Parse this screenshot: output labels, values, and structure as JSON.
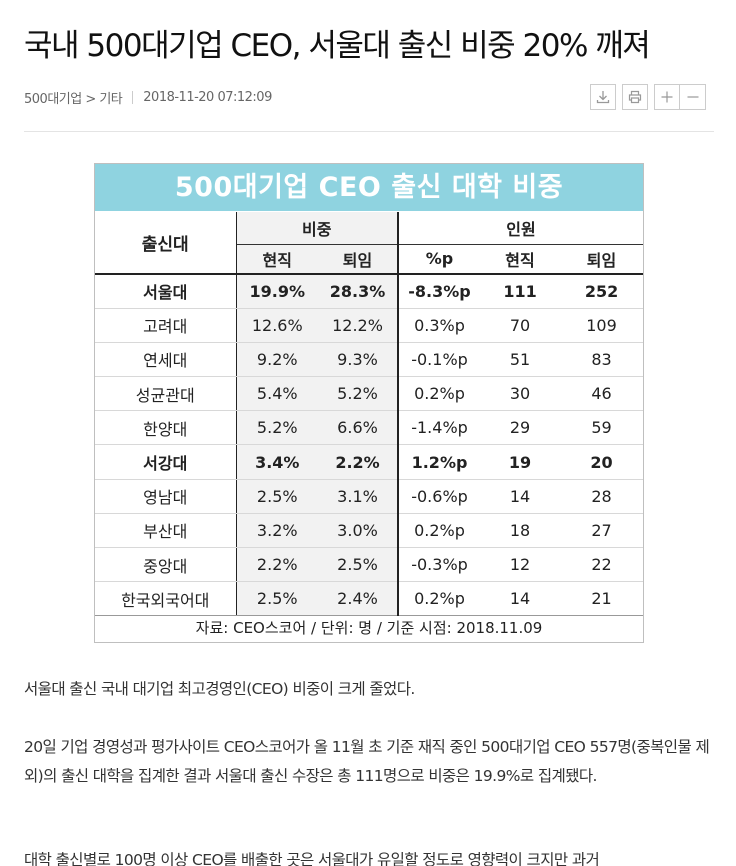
{
  "article": {
    "headline": "국내 500대기업 CEO, 서울대 출신 비중 20% 깨져",
    "category": "500대기업 > 기타",
    "datetime": "2018-11-20 07:12:09",
    "tools": {
      "download": "download-icon",
      "print": "print-icon",
      "font_up": "plus-icon",
      "font_down": "minus-icon"
    },
    "paragraphs": [
      "서울대 출신 국내 대기업 최고경영인(CEO) 비중이 크게 줄었다.",
      "20일 기업 경영성과 평가사이트 CEO스코어가 올 11월 초 기준 재직 중인 500대기업 CEO 557명(중복인물 제외)의 출신 대학을 집계한 결과 서울대 출신 수장은 총 111명으로 비중은 19.9%로 집계됐다.",
      "대학 출신별로 100명 이상 CEO를 배출한 곳은 서울대가 유일할 정도로 영향력이 크지만 과거"
    ]
  },
  "chart_data": {
    "type": "table",
    "title": "500대기업 CEO 출신 대학 비중",
    "header": {
      "university": "출신대",
      "share_group": "비중",
      "people_group": "인원",
      "share_current": "현직",
      "share_retired": "퇴임",
      "pp": "%p",
      "people_current": "현직",
      "people_retired": "퇴임"
    },
    "rows": [
      {
        "name": "서울대",
        "share_current": "19.9%",
        "share_retired": "28.3%",
        "pp": "-8.3%p",
        "current": "111",
        "retired": "252",
        "bold": true
      },
      {
        "name": "고려대",
        "share_current": "12.6%",
        "share_retired": "12.2%",
        "pp": "0.3%p",
        "current": "70",
        "retired": "109",
        "bold": false
      },
      {
        "name": "연세대",
        "share_current": "9.2%",
        "share_retired": "9.3%",
        "pp": "-0.1%p",
        "current": "51",
        "retired": "83",
        "bold": false
      },
      {
        "name": "성균관대",
        "share_current": "5.4%",
        "share_retired": "5.2%",
        "pp": "0.2%p",
        "current": "30",
        "retired": "46",
        "bold": false
      },
      {
        "name": "한양대",
        "share_current": "5.2%",
        "share_retired": "6.6%",
        "pp": "-1.4%p",
        "current": "29",
        "retired": "59",
        "bold": false
      },
      {
        "name": "서강대",
        "share_current": "3.4%",
        "share_retired": "2.2%",
        "pp": "1.2%p",
        "current": "19",
        "retired": "20",
        "bold": true
      },
      {
        "name": "영남대",
        "share_current": "2.5%",
        "share_retired": "3.1%",
        "pp": "-0.6%p",
        "current": "14",
        "retired": "28",
        "bold": false
      },
      {
        "name": "부산대",
        "share_current": "3.2%",
        "share_retired": "3.0%",
        "pp": "0.2%p",
        "current": "18",
        "retired": "27",
        "bold": false
      },
      {
        "name": "중앙대",
        "share_current": "2.2%",
        "share_retired": "2.5%",
        "pp": "-0.3%p",
        "current": "12",
        "retired": "22",
        "bold": false
      },
      {
        "name": "한국외국어대",
        "share_current": "2.5%",
        "share_retired": "2.4%",
        "pp": "0.2%p",
        "current": "14",
        "retired": "21",
        "bold": false
      }
    ],
    "source": "자료: CEO스코어 / 단위: 명 / 기준 시점: 2018.11.09",
    "colors": {
      "title_bg": "#8fd3e0",
      "title_text": "#ffffff",
      "shade": "#f2f2f2"
    }
  }
}
